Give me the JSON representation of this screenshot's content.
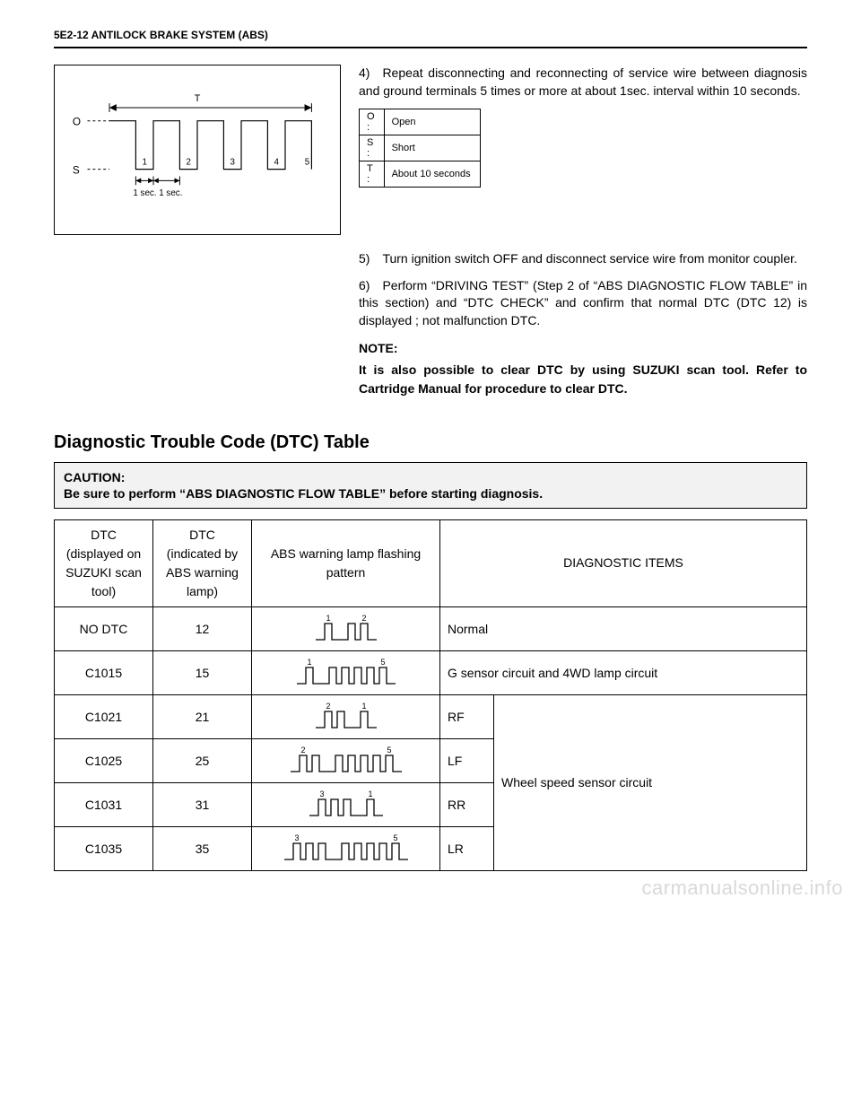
{
  "header": "5E2-12 ANTILOCK BRAKE SYSTEM (ABS)",
  "diagram": {
    "O_label": "O",
    "S_label": "S",
    "T_label": "T",
    "pulse_numbers": [
      "1",
      "2",
      "3",
      "4",
      "5"
    ],
    "interval_label": "1 sec. 1 sec."
  },
  "steps": {
    "s4": "4) Repeat disconnecting and reconnecting of service wire between diagnosis and ground terminals 5 times or more at about 1sec. interval within 10 seconds.",
    "s5": "5) Turn ignition switch OFF and disconnect service wire from monitor coupler.",
    "s6": "6) Perform “DRIVING TEST” (Step 2 of “ABS DIAGNOSTIC FLOW TABLE” in this section) and “DTC CHECK” and confirm that normal DTC (DTC 12) is displayed ; not malfunction DTC."
  },
  "legend": {
    "O": {
      "key": "O :",
      "val": "Open"
    },
    "S": {
      "key": "S :",
      "val": "Short"
    },
    "T": {
      "key": "T :",
      "val": "About 10 seconds"
    }
  },
  "note": {
    "label": "NOTE:",
    "body": "It is also possible to clear DTC by using SUZUKI scan tool. Refer to Cartridge Manual for procedure to clear DTC."
  },
  "section_title": "Diagnostic Trouble Code (DTC) Table",
  "caution": {
    "label": "CAUTION:",
    "body": "Be sure to perform “ABS DIAGNOSTIC FLOW TABLE” before starting diagnosis."
  },
  "dtc_table": {
    "headers": {
      "h1": "DTC (displayed on SUZUKI scan tool)",
      "h2": "DTC (indicated by ABS warning lamp)",
      "h3": "ABS warning lamp flashing pattern",
      "h4": "DIAGNOSTIC ITEMS"
    },
    "rows": [
      {
        "code1": "NO DTC",
        "code2": "12",
        "tens": 1,
        "ones": 2,
        "item_a": "Normal",
        "item_b": ""
      },
      {
        "code1": "C1015",
        "code2": "15",
        "tens": 1,
        "ones": 5,
        "item_a": "G sensor circuit and 4WD lamp circuit",
        "item_b": ""
      },
      {
        "code1": "C1021",
        "code2": "21",
        "tens": 2,
        "ones": 1,
        "item_a": "RF",
        "item_b": "Wheel speed sensor circuit"
      },
      {
        "code1": "C1025",
        "code2": "25",
        "tens": 2,
        "ones": 5,
        "item_a": "LF",
        "item_b": ""
      },
      {
        "code1": "C1031",
        "code2": "31",
        "tens": 3,
        "ones": 1,
        "item_a": "RR",
        "item_b": ""
      },
      {
        "code1": "C1035",
        "code2": "35",
        "tens": 3,
        "ones": 5,
        "item_a": "LR",
        "item_b": ""
      }
    ],
    "group_label": "Wheel speed sensor circuit"
  },
  "watermark": "carmanualsonline.info"
}
